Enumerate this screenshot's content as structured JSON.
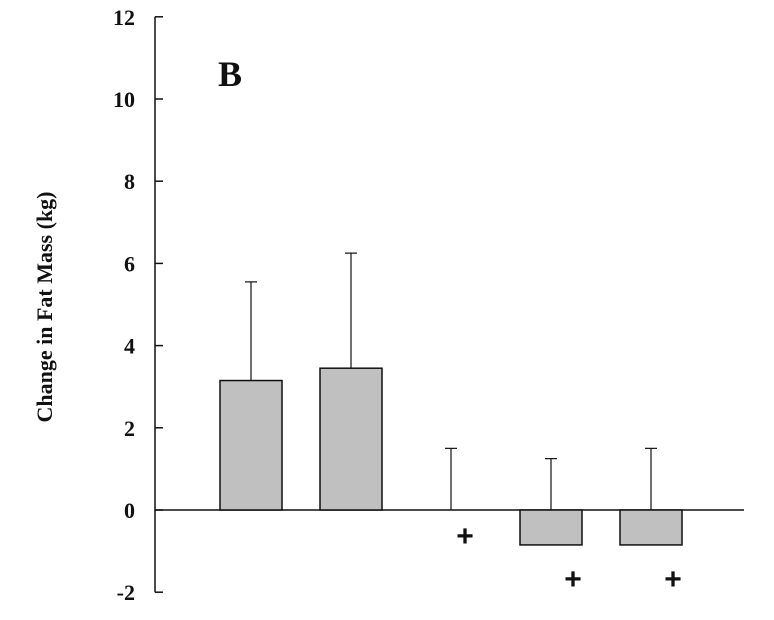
{
  "chart_data": {
    "type": "bar",
    "panel_label": "B",
    "ylabel": "Change in Fat Mass (kg)",
    "xlabel": "",
    "ylim": [
      -2,
      12
    ],
    "yticks": [
      "-2",
      "0",
      "2",
      "4",
      "6",
      "8",
      "10",
      "12"
    ],
    "bar_color": "#c0c0c0",
    "series": [
      {
        "values": [
          3.15,
          3.45,
          0.0,
          -0.85,
          -0.85
        ],
        "error_upper": [
          5.55,
          6.25,
          1.5,
          1.25,
          1.5
        ],
        "markers": [
          "",
          "",
          "+",
          "+",
          "+"
        ]
      }
    ]
  }
}
